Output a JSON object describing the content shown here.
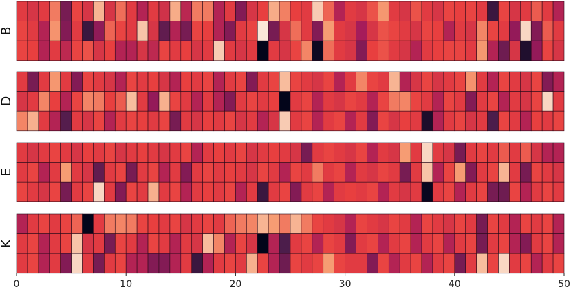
{
  "chart_data": {
    "type": "heatmap",
    "title": "",
    "xlabel": "",
    "ylabel": "",
    "x_range": [
      0,
      50
    ],
    "x_ticks": [
      0,
      10,
      20,
      30,
      40,
      50
    ],
    "x_tick_labels": [
      "0",
      "10",
      "20",
      "30",
      "40",
      "50"
    ],
    "colormap": [
      "#03051a",
      "#4c1d4b",
      "#a11a5b",
      "#e83f3f",
      "#f69c73",
      "#faebdd"
    ],
    "value_range": [
      0,
      1
    ],
    "panels": [
      {
        "label": "B",
        "rows": [
          [
            0.58,
            0.55,
            0.58,
            0.73,
            0.3,
            0.61,
            0.55,
            0.86,
            0.55,
            0.7,
            0.58,
            0.45,
            0.58,
            0.53,
            0.84,
            0.47,
            0.73,
            0.73,
            0.45,
            0.58,
            0.33,
            0.55,
            0.6,
            0.84,
            0.74,
            0.6,
            0.58,
            0.92,
            0.68,
            0.45,
            0.58,
            0.55,
            0.64,
            0.79,
            0.58,
            0.55,
            0.64,
            0.58,
            0.55,
            0.61,
            0.6,
            0.61,
            0.58,
            0.15,
            0.61,
            0.55,
            0.58,
            0.66,
            0.58,
            0.45
          ],
          [
            0.61,
            0.58,
            0.45,
            0.78,
            0.33,
            0.58,
            0.15,
            0.36,
            0.68,
            0.61,
            0.58,
            0.9,
            0.55,
            0.25,
            0.45,
            0.3,
            0.61,
            0.6,
            0.45,
            0.33,
            0.58,
            0.61,
            0.99,
            0.3,
            0.55,
            0.7,
            0.58,
            0.33,
            0.8,
            0.58,
            0.55,
            0.41,
            0.55,
            0.64,
            0.61,
            0.58,
            0.55,
            0.61,
            0.6,
            0.45,
            0.58,
            0.55,
            0.75,
            0.61,
            0.58,
            0.37,
            0.95,
            0.33,
            0.66,
            0.58
          ],
          [
            0.61,
            0.6,
            0.45,
            0.58,
            0.48,
            0.61,
            0.64,
            0.55,
            0.6,
            0.45,
            0.45,
            0.55,
            0.48,
            0.61,
            0.58,
            0.6,
            0.55,
            0.58,
            0.92,
            0.58,
            0.55,
            0.58,
            0.0,
            0.58,
            0.55,
            0.61,
            0.75,
            0.03,
            0.7,
            0.58,
            0.55,
            0.33,
            0.6,
            0.64,
            0.58,
            0.55,
            0.45,
            0.58,
            0.6,
            0.61,
            0.61,
            0.58,
            0.79,
            0.45,
            0.28,
            0.55,
            0.08,
            0.37,
            0.61,
            0.55
          ]
        ]
      },
      {
        "label": "D",
        "rows": [
          [
            0.58,
            0.3,
            0.58,
            0.79,
            0.58,
            0.33,
            0.61,
            0.58,
            0.55,
            0.45,
            0.61,
            0.58,
            0.6,
            0.55,
            0.45,
            0.6,
            0.58,
            0.61,
            0.45,
            0.58,
            0.61,
            0.33,
            0.58,
            0.61,
            0.88,
            0.61,
            0.58,
            0.55,
            0.61,
            0.45,
            0.58,
            0.75,
            0.61,
            0.58,
            0.86,
            0.45,
            0.55,
            0.61,
            0.55,
            0.58,
            0.61,
            0.78,
            0.58,
            0.45,
            0.61,
            0.58,
            0.55,
            0.61,
            0.33,
            0.45
          ],
          [
            0.55,
            0.58,
            0.75,
            0.6,
            0.45,
            0.61,
            0.75,
            0.73,
            0.6,
            0.66,
            0.88,
            0.58,
            0.37,
            0.85,
            0.61,
            0.58,
            0.45,
            0.58,
            0.45,
            0.33,
            0.58,
            0.61,
            0.58,
            0.6,
            0.0,
            0.58,
            0.61,
            0.45,
            0.58,
            0.55,
            0.61,
            0.58,
            0.45,
            0.61,
            0.73,
            0.75,
            0.61,
            0.58,
            0.45,
            0.61,
            0.58,
            0.33,
            0.58,
            0.61,
            0.45,
            0.58,
            0.55,
            0.61,
            0.95,
            0.58
          ],
          [
            0.75,
            0.85,
            0.58,
            0.45,
            0.22,
            0.58,
            0.55,
            0.61,
            0.45,
            0.58,
            0.61,
            0.6,
            0.58,
            0.61,
            0.3,
            0.58,
            0.55,
            0.6,
            0.58,
            0.61,
            0.55,
            0.58,
            0.45,
            0.55,
            0.92,
            0.58,
            0.61,
            0.45,
            0.58,
            0.61,
            0.45,
            0.58,
            0.33,
            0.61,
            0.55,
            0.6,
            0.58,
            0.07,
            0.45,
            0.58,
            0.61,
            0.55,
            0.58,
            0.2,
            0.61,
            0.58,
            0.45,
            0.6,
            0.58,
            0.61
          ]
        ]
      },
      {
        "label": "E",
        "rows": [
          [
            0.58,
            0.55,
            0.58,
            0.61,
            0.58,
            0.55,
            0.6,
            0.58,
            0.61,
            0.55,
            0.58,
            0.6,
            0.58,
            0.55,
            0.58,
            0.61,
            0.45,
            0.58,
            0.6,
            0.58,
            0.61,
            0.55,
            0.58,
            0.6,
            0.58,
            0.55,
            0.3,
            0.58,
            0.61,
            0.58,
            0.55,
            0.61,
            0.45,
            0.58,
            0.55,
            0.8,
            0.58,
            0.95,
            0.58,
            0.55,
            0.3,
            0.58,
            0.61,
            0.58,
            0.66,
            0.58,
            0.66,
            0.55,
            0.45,
            0.45
          ],
          [
            0.58,
            0.61,
            0.45,
            0.58,
            0.8,
            0.58,
            0.55,
            0.25,
            0.58,
            0.61,
            0.3,
            0.58,
            0.61,
            0.45,
            0.58,
            0.33,
            0.58,
            0.61,
            0.58,
            0.6,
            0.58,
            0.55,
            0.61,
            0.58,
            0.45,
            0.61,
            0.58,
            0.73,
            0.58,
            0.61,
            0.45,
            0.58,
            0.55,
            0.61,
            0.58,
            0.3,
            0.58,
            0.9,
            0.45,
            0.61,
            0.8,
            0.33,
            0.58,
            0.61,
            0.86,
            0.58,
            0.3,
            0.61,
            0.58,
            0.55
          ],
          [
            0.61,
            0.58,
            0.55,
            0.61,
            0.3,
            0.58,
            0.61,
            0.95,
            0.58,
            0.33,
            0.61,
            0.58,
            0.85,
            0.58,
            0.61,
            0.45,
            0.58,
            0.6,
            0.58,
            0.61,
            0.45,
            0.58,
            0.15,
            0.58,
            0.61,
            0.33,
            0.58,
            0.61,
            0.45,
            0.58,
            0.6,
            0.58,
            0.61,
            0.45,
            0.58,
            0.55,
            0.58,
            0.02,
            0.58,
            0.61,
            0.45,
            0.58,
            0.61,
            0.3,
            0.28,
            0.61,
            0.45,
            0.58,
            0.61,
            0.58
          ]
        ]
      },
      {
        "label": "K",
        "rows": [
          [
            0.45,
            0.58,
            0.61,
            0.58,
            0.61,
            0.68,
            0.0,
            0.58,
            0.73,
            0.75,
            0.73,
            0.61,
            0.6,
            0.58,
            0.61,
            0.55,
            0.58,
            0.61,
            0.58,
            0.68,
            0.73,
            0.75,
            0.86,
            0.8,
            0.73,
            0.86,
            0.73,
            0.61,
            0.58,
            0.55,
            0.45,
            0.61,
            0.58,
            0.55,
            0.61,
            0.58,
            0.45,
            0.61,
            0.58,
            0.55,
            0.61,
            0.58,
            0.3,
            0.61,
            0.58,
            0.45,
            0.61,
            0.58,
            0.61,
            0.45
          ],
          [
            0.58,
            0.61,
            0.45,
            0.58,
            0.61,
            0.9,
            0.55,
            0.58,
            0.3,
            0.61,
            0.58,
            0.45,
            0.61,
            0.58,
            0.45,
            0.58,
            0.55,
            0.88,
            0.75,
            0.45,
            0.61,
            0.55,
            0.0,
            0.45,
            0.2,
            0.58,
            0.61,
            0.45,
            0.61,
            0.58,
            0.33,
            0.58,
            0.61,
            0.45,
            0.58,
            0.61,
            0.45,
            0.58,
            0.61,
            0.45,
            0.58,
            0.61,
            0.3,
            0.58,
            0.61,
            0.45,
            0.33,
            0.58,
            0.61,
            0.45
          ],
          [
            0.58,
            0.61,
            0.45,
            0.58,
            0.33,
            0.95,
            0.58,
            0.3,
            0.58,
            0.61,
            0.45,
            0.45,
            0.33,
            0.33,
            0.45,
            0.58,
            0.15,
            0.45,
            0.58,
            0.61,
            0.58,
            0.85,
            0.61,
            0.45,
            0.28,
            0.61,
            0.58,
            0.61,
            0.8,
            0.61,
            0.58,
            0.58,
            0.33,
            0.61,
            0.45,
            0.58,
            0.61,
            0.45,
            0.58,
            0.61,
            0.3,
            0.58,
            0.88,
            0.61,
            0.95,
            0.58,
            0.61,
            0.45,
            0.58,
            0.61
          ]
        ]
      }
    ]
  }
}
